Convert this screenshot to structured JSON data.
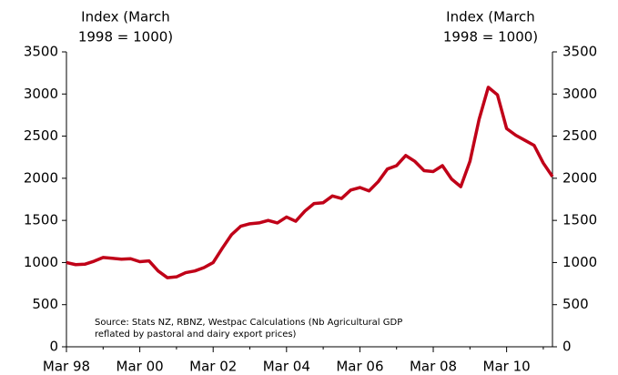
{
  "chart_data": {
    "type": "line",
    "y_label": [
      "Index (March",
      "1998 = 1000)"
    ],
    "y2_label": [
      "Index (March",
      "1998 = 1000)"
    ],
    "annotation": [
      "Source: Stats NZ, RBNZ, Westpac Calculations (Nb Agricultural GDP",
      "reflated by pastoral and dairy export prices)"
    ],
    "categories": [
      "Mar 98",
      null,
      null,
      null,
      null,
      null,
      null,
      null,
      "Mar 00",
      null,
      null,
      null,
      null,
      null,
      null,
      null,
      "Mar 02",
      null,
      null,
      null,
      null,
      null,
      null,
      null,
      "Mar 04",
      null,
      null,
      null,
      null,
      null,
      null,
      null,
      "Mar 06",
      null,
      null,
      null,
      null,
      null,
      null,
      null,
      "Mar 08",
      null,
      null,
      null,
      null,
      null,
      null,
      null,
      "Mar 10",
      null,
      null,
      null,
      null,
      null
    ],
    "values": [
      1000,
      975,
      980,
      1015,
      1060,
      1050,
      1040,
      1045,
      1010,
      1020,
      900,
      820,
      830,
      880,
      900,
      940,
      1000,
      1170,
      1330,
      1430,
      1460,
      1470,
      1500,
      1470,
      1540,
      1490,
      1610,
      1700,
      1710,
      1790,
      1760,
      1860,
      1890,
      1850,
      1960,
      2110,
      2150,
      2270,
      2200,
      2090,
      2080,
      2150,
      1990,
      1900,
      2200,
      2700,
      3080,
      2990,
      2590,
      2510,
      2450,
      2390,
      2180,
      2020
    ],
    "color": "#c00018",
    "ylim": [
      0,
      3500
    ],
    "yticks": [
      0,
      500,
      1000,
      1500,
      2000,
      2500,
      3000,
      3500
    ],
    "y2lim": [
      0,
      3500
    ],
    "y2ticks": [
      0,
      500,
      1000,
      1500,
      2000,
      2500,
      3000,
      3500
    ],
    "grid": false
  }
}
